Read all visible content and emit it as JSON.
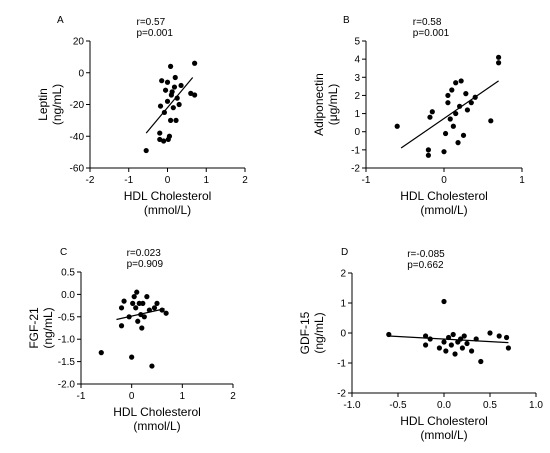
{
  "chart_data": [
    {
      "type": "scatter",
      "panel_label": "A",
      "title": "",
      "xlabel": "HDL Cholesterol",
      "xlabel2": "(mmol/L)",
      "ylabel": "Leptin",
      "ylabel2": "(ng/mL)",
      "xlim": [
        -2,
        2
      ],
      "ylim": [
        -60,
        20
      ],
      "xticks": [
        -2,
        -1,
        0,
        1,
        2
      ],
      "yticks": [
        -60,
        -40,
        -20,
        0,
        20
      ],
      "stats": [
        "r=0.57",
        "p=0.001"
      ],
      "fit_line": {
        "x": [
          -0.55,
          0.65
        ],
        "y": [
          -38,
          -3
        ]
      },
      "points": [
        {
          "x": -0.55,
          "y": -49
        },
        {
          "x": -0.2,
          "y": -42
        },
        {
          "x": -0.2,
          "y": -38
        },
        {
          "x": -0.18,
          "y": -21
        },
        {
          "x": -0.15,
          "y": -5
        },
        {
          "x": -0.1,
          "y": -43
        },
        {
          "x": -0.08,
          "y": -25
        },
        {
          "x": -0.05,
          "y": -11
        },
        {
          "x": 0.0,
          "y": -18
        },
        {
          "x": 0.0,
          "y": -6
        },
        {
          "x": 0.02,
          "y": -42
        },
        {
          "x": 0.05,
          "y": -40
        },
        {
          "x": 0.08,
          "y": -30
        },
        {
          "x": 0.08,
          "y": 4
        },
        {
          "x": 0.1,
          "y": -14
        },
        {
          "x": 0.12,
          "y": -12
        },
        {
          "x": 0.15,
          "y": -22
        },
        {
          "x": 0.18,
          "y": -9
        },
        {
          "x": 0.2,
          "y": -3
        },
        {
          "x": 0.22,
          "y": -30
        },
        {
          "x": 0.25,
          "y": -16
        },
        {
          "x": 0.3,
          "y": -20
        },
        {
          "x": 0.35,
          "y": -8
        },
        {
          "x": 0.6,
          "y": -13
        },
        {
          "x": 0.7,
          "y": -14
        },
        {
          "x": 0.7,
          "y": 6
        }
      ]
    },
    {
      "type": "scatter",
      "panel_label": "B",
      "title": "",
      "xlabel": "HDL Cholesterol",
      "xlabel2": "(mmol/L)",
      "ylabel": "Adiponectin",
      "ylabel2": "(μg/mL)",
      "xlim": [
        -1,
        1
      ],
      "ylim": [
        -2,
        5
      ],
      "xticks": [
        -1,
        0,
        1
      ],
      "yticks": [
        -2,
        -1,
        0,
        1,
        2,
        3,
        4,
        5
      ],
      "stats": [
        "r=0.58",
        "p=0.001"
      ],
      "fit_line": {
        "x": [
          -0.55,
          0.7
        ],
        "y": [
          -0.9,
          2.8
        ]
      },
      "points": [
        {
          "x": -0.6,
          "y": 0.3
        },
        {
          "x": -0.2,
          "y": -1.3
        },
        {
          "x": -0.2,
          "y": -1.0
        },
        {
          "x": -0.18,
          "y": 0.8
        },
        {
          "x": -0.15,
          "y": 1.1
        },
        {
          "x": 0.0,
          "y": -1.1
        },
        {
          "x": 0.02,
          "y": -0.1
        },
        {
          "x": 0.05,
          "y": 1.6
        },
        {
          "x": 0.05,
          "y": 2.0
        },
        {
          "x": 0.08,
          "y": 0.7
        },
        {
          "x": 0.1,
          "y": 2.3
        },
        {
          "x": 0.12,
          "y": 0.3
        },
        {
          "x": 0.15,
          "y": 1.0
        },
        {
          "x": 0.15,
          "y": 2.7
        },
        {
          "x": 0.18,
          "y": -0.6
        },
        {
          "x": 0.2,
          "y": 1.4
        },
        {
          "x": 0.22,
          "y": 2.8
        },
        {
          "x": 0.25,
          "y": -0.2
        },
        {
          "x": 0.28,
          "y": 2.1
        },
        {
          "x": 0.3,
          "y": 1.2
        },
        {
          "x": 0.35,
          "y": 1.6
        },
        {
          "x": 0.4,
          "y": 1.9
        },
        {
          "x": 0.6,
          "y": 0.6
        },
        {
          "x": 0.7,
          "y": 3.8
        },
        {
          "x": 0.7,
          "y": 4.1
        }
      ]
    },
    {
      "type": "scatter",
      "panel_label": "C",
      "title": "",
      "xlabel": "HDL Cholesterol",
      "xlabel2": "(mmol/L)",
      "ylabel": "FGF-21",
      "ylabel2": "(ng/mL)",
      "xlim": [
        -1,
        2
      ],
      "ylim": [
        -2.0,
        0.5
      ],
      "xticks": [
        -1,
        0,
        1,
        2
      ],
      "yticks": [
        -2.0,
        -1.5,
        -1.0,
        -0.5,
        0.0,
        0.5
      ],
      "ytick_labels": [
        "-2.0",
        "-1.5",
        "-1.0",
        "-0.5",
        "0.0",
        "0.5"
      ],
      "stats": [
        "r=0.023",
        "p=0.909"
      ],
      "fit_line": {
        "x": [
          -0.3,
          0.65
        ],
        "y": [
          -0.56,
          -0.32
        ]
      },
      "points": [
        {
          "x": -0.6,
          "y": -1.3
        },
        {
          "x": -0.2,
          "y": -0.7
        },
        {
          "x": -0.2,
          "y": -0.3
        },
        {
          "x": -0.15,
          "y": -0.15
        },
        {
          "x": -0.05,
          "y": -0.5
        },
        {
          "x": 0.0,
          "y": -1.4
        },
        {
          "x": 0.02,
          "y": -0.2
        },
        {
          "x": 0.05,
          "y": -0.05
        },
        {
          "x": 0.08,
          "y": -0.3
        },
        {
          "x": 0.1,
          "y": 0.05
        },
        {
          "x": 0.12,
          "y": -0.6
        },
        {
          "x": 0.15,
          "y": -0.2
        },
        {
          "x": 0.18,
          "y": -0.45
        },
        {
          "x": 0.2,
          "y": -0.75
        },
        {
          "x": 0.22,
          "y": -0.2
        },
        {
          "x": 0.25,
          "y": -0.5
        },
        {
          "x": 0.3,
          "y": -0.05
        },
        {
          "x": 0.35,
          "y": -0.35
        },
        {
          "x": 0.4,
          "y": -1.6
        },
        {
          "x": 0.45,
          "y": -0.3
        },
        {
          "x": 0.5,
          "y": -0.2
        },
        {
          "x": 0.6,
          "y": -0.35
        },
        {
          "x": 0.68,
          "y": -0.42
        }
      ]
    },
    {
      "type": "scatter",
      "panel_label": "D",
      "title": "",
      "xlabel": "HDL Cholesterol",
      "xlabel2": "(mmol/L)",
      "ylabel": "GDF-15",
      "ylabel2": "(ng/mL)",
      "xlim": [
        -1.0,
        1.0
      ],
      "ylim": [
        -2,
        2
      ],
      "xticks": [
        -1.0,
        -0.5,
        0.0,
        0.5,
        1.0
      ],
      "xtick_labels": [
        "-1.0",
        "-0.5",
        "0.0",
        "0.5",
        "1.0"
      ],
      "yticks": [
        -2,
        -1,
        0,
        1,
        2
      ],
      "stats": [
        "r=-0.085",
        "p=0.662"
      ],
      "fit_line": {
        "x": [
          -0.6,
          0.7
        ],
        "y": [
          -0.1,
          -0.32
        ]
      },
      "points": [
        {
          "x": -0.6,
          "y": -0.05
        },
        {
          "x": -0.2,
          "y": -0.1
        },
        {
          "x": -0.2,
          "y": -0.4
        },
        {
          "x": -0.15,
          "y": -0.2
        },
        {
          "x": -0.05,
          "y": -0.5
        },
        {
          "x": 0.0,
          "y": 1.05
        },
        {
          "x": 0.0,
          "y": -0.3
        },
        {
          "x": 0.02,
          "y": -0.6
        },
        {
          "x": 0.05,
          "y": -0.15
        },
        {
          "x": 0.08,
          "y": -0.4
        },
        {
          "x": 0.1,
          "y": -0.05
        },
        {
          "x": 0.12,
          "y": -0.7
        },
        {
          "x": 0.15,
          "y": -0.3
        },
        {
          "x": 0.18,
          "y": -0.2
        },
        {
          "x": 0.2,
          "y": -0.5
        },
        {
          "x": 0.22,
          "y": -0.1
        },
        {
          "x": 0.25,
          "y": -0.35
        },
        {
          "x": 0.3,
          "y": -0.6
        },
        {
          "x": 0.35,
          "y": -0.2
        },
        {
          "x": 0.4,
          "y": -0.95
        },
        {
          "x": 0.5,
          "y": 0.0
        },
        {
          "x": 0.6,
          "y": -0.1
        },
        {
          "x": 0.68,
          "y": -0.15
        },
        {
          "x": 0.7,
          "y": -0.5
        }
      ]
    }
  ]
}
